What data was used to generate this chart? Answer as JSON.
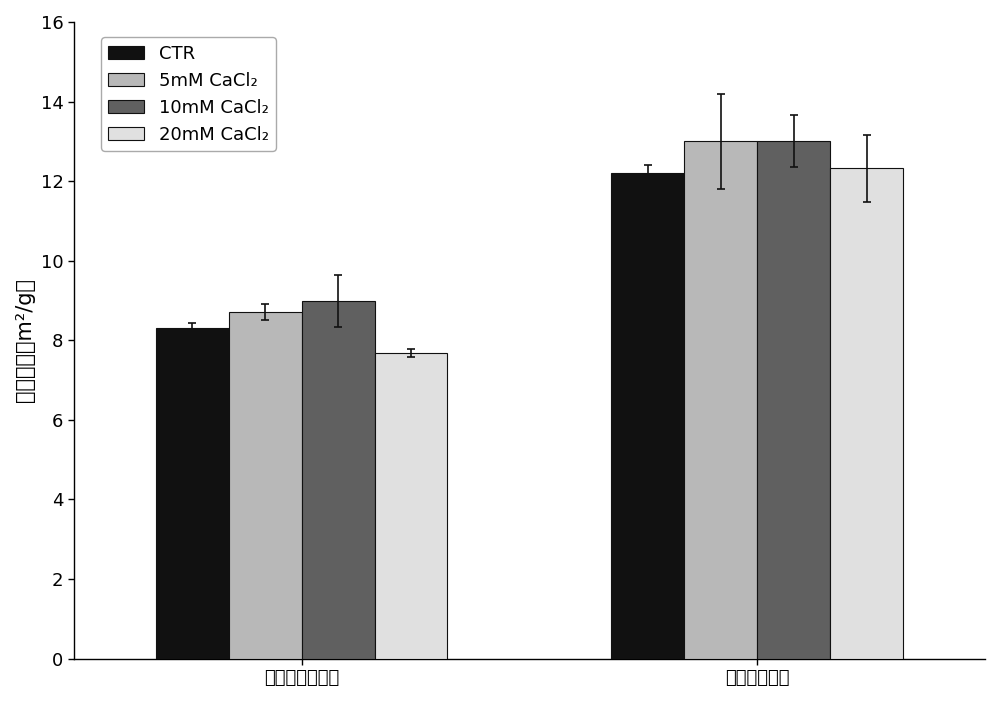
{
  "groups": [
    "未改性绿豆蛋白",
    "改性绿豆蛋白"
  ],
  "series": [
    "CTR",
    "5mM CaCl₂",
    "10mM CaCl₂",
    "20mM CaCl₂"
  ],
  "values": [
    [
      8.32,
      8.72,
      8.98,
      7.68
    ],
    [
      12.2,
      13.0,
      13.0,
      12.32
    ]
  ],
  "errors": [
    [
      0.12,
      0.2,
      0.65,
      0.1
    ],
    [
      0.2,
      1.2,
      0.65,
      0.85
    ]
  ],
  "colors": [
    "#111111",
    "#b8b8b8",
    "#606060",
    "#e0e0e0"
  ],
  "bar_edgecolor": "#111111",
  "ylabel": "乳化活性（m²/g）",
  "ylim": [
    0,
    16
  ],
  "yticks": [
    0,
    2,
    4,
    6,
    8,
    10,
    12,
    14,
    16
  ],
  "figsize": [
    10.0,
    7.02
  ],
  "dpi": 100,
  "bar_width": 0.08,
  "group_centers": [
    0.25,
    0.75
  ],
  "legend_fontsize": 13,
  "axis_fontsize": 15,
  "tick_fontsize": 13,
  "background_color": "#ffffff",
  "capsize": 3,
  "elinewidth": 1.2,
  "ecolor": "#111111"
}
